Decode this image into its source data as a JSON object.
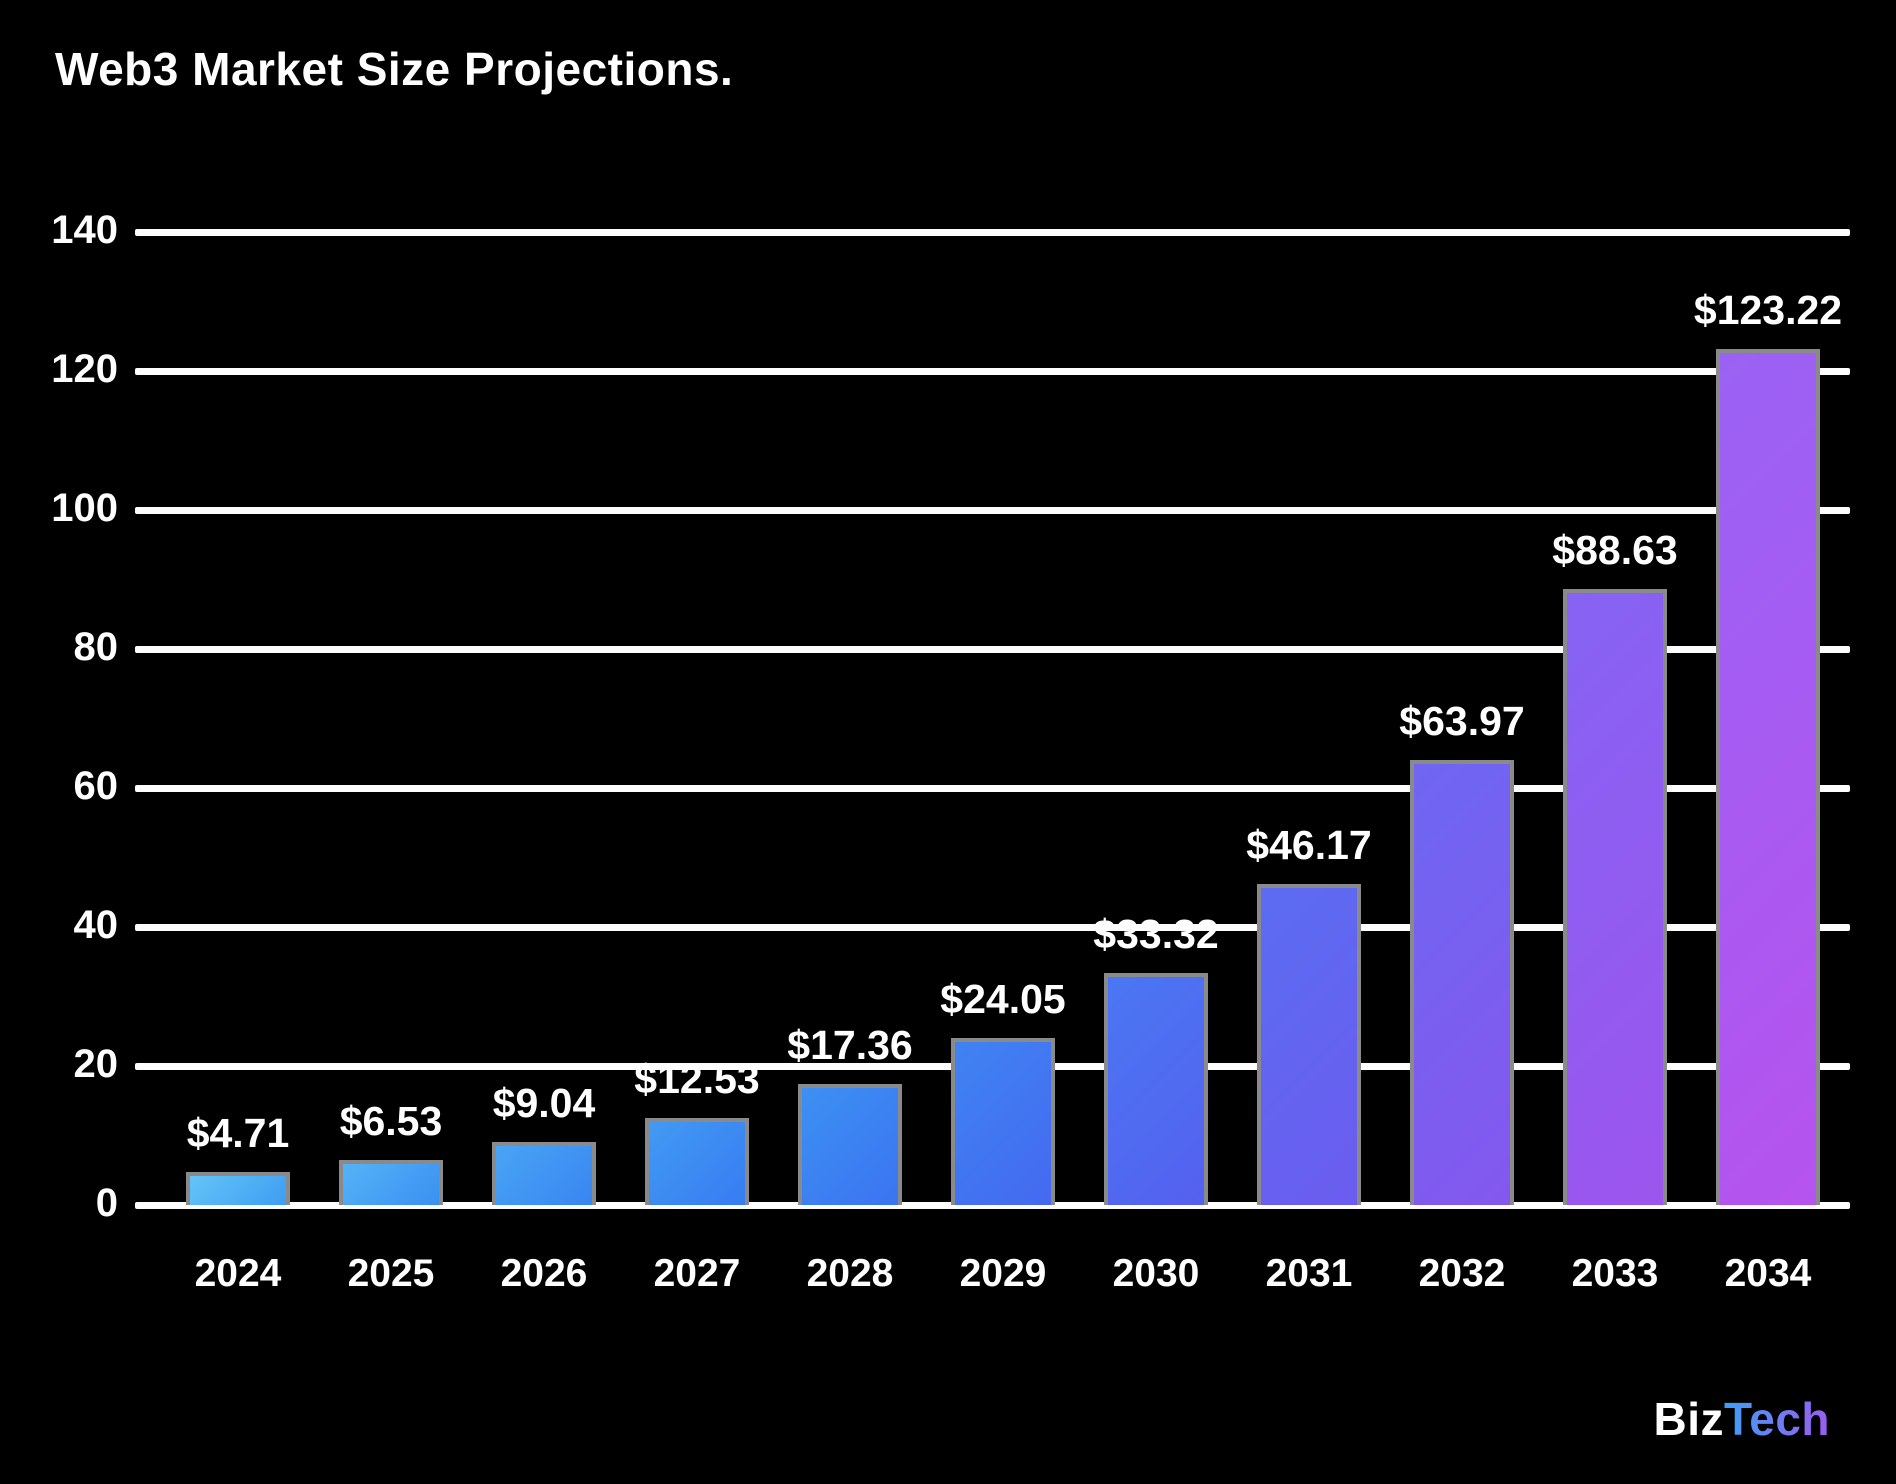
{
  "chart_data": {
    "type": "bar",
    "title": "Web3 Market Size Projections.",
    "categories": [
      "2024",
      "2025",
      "2026",
      "2027",
      "2028",
      "2029",
      "2030",
      "2031",
      "2032",
      "2033",
      "2034"
    ],
    "values": [
      4.71,
      6.53,
      9.04,
      12.53,
      17.36,
      24.05,
      33.32,
      46.17,
      63.97,
      88.63,
      123.22
    ],
    "bar_labels": [
      "$4.71",
      "$6.53",
      "$9.04",
      "$12.53",
      "$17.36",
      "$24.05",
      "$33.32",
      "$46.17",
      "$63.97",
      "$88.63",
      "$123.22"
    ],
    "ylim": [
      0,
      140
    ],
    "y_ticks": [
      140,
      120,
      100,
      80,
      60,
      40,
      20,
      0
    ],
    "xlabel": "",
    "ylabel": "",
    "grid": "horizontal-on",
    "legend": "none",
    "background_color": "#000000",
    "gridline_color": "#fdfdfd",
    "text_color": "#ffffff",
    "bar_border_color": "#8a8a8a",
    "bar_gradients": [
      [
        "#64c5f8",
        "#3d9df2"
      ],
      [
        "#55b3f6",
        "#3a90f2"
      ],
      [
        "#4aa5f4",
        "#3885f2"
      ],
      [
        "#429af3",
        "#377cf2"
      ],
      [
        "#3d90f3",
        "#3b74f1"
      ],
      [
        "#3f83f2",
        "#4569f0"
      ],
      [
        "#4a77f2",
        "#5560ef"
      ],
      [
        "#5b6cf1",
        "#6c5cef"
      ],
      [
        "#6f66f2",
        "#8458ef"
      ],
      [
        "#8663f3",
        "#9c55ee"
      ],
      [
        "#9a62f4",
        "#b653ee"
      ]
    ]
  },
  "branding": {
    "prefix": "Biz",
    "suffix": "Tech",
    "prefix_color": "#ffffff",
    "gradient_from": "#3d9ff5",
    "gradient_to": "#9a5cf0"
  }
}
